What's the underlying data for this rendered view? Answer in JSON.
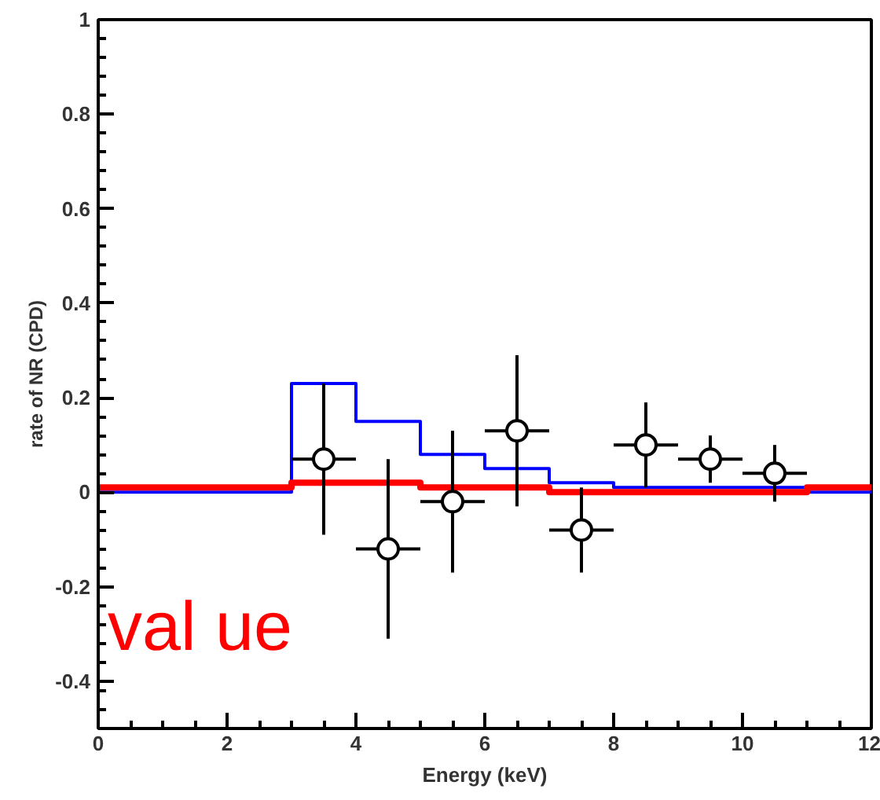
{
  "chart_data": {
    "type": "scatter",
    "xlabel": "Energy (keV)",
    "ylabel": "rate of NR (CPD)",
    "xlim": [
      0,
      12
    ],
    "ylim": [
      -0.5,
      1
    ],
    "xticks": [
      0,
      {
        "value": 0.5,
        "label": null
      },
      {
        "value": 1,
        "label": null
      },
      {
        "value": 1.5,
        "label": null
      },
      2,
      {
        "value": 2.5,
        "label": null
      },
      {
        "value": 3,
        "label": null
      },
      {
        "value": 3.5,
        "label": null
      },
      4,
      {
        "value": 4.5,
        "label": null
      },
      {
        "value": 5,
        "label": null
      },
      {
        "value": 5.5,
        "label": null
      },
      6,
      {
        "value": 6.5,
        "label": null
      },
      {
        "value": 7,
        "label": null
      },
      {
        "value": 7.5,
        "label": null
      },
      8,
      {
        "value": 8.5,
        "label": null
      },
      {
        "value": 9,
        "label": null
      },
      {
        "value": 9.5,
        "label": null
      },
      10,
      {
        "value": 10.5,
        "label": null
      },
      {
        "value": 11,
        "label": null
      },
      {
        "value": 11.5,
        "label": null
      },
      12
    ],
    "yticks": [
      {
        "value": -0.5,
        "label": null
      },
      {
        "value": -0.46,
        "label": null
      },
      {
        "value": -0.42,
        "label": null
      },
      -0.4,
      {
        "value": -0.36,
        "label": null
      },
      {
        "value": -0.32,
        "label": null
      },
      {
        "value": -0.28,
        "label": null
      },
      {
        "value": -0.24,
        "label": null
      },
      -0.2,
      {
        "value": -0.16,
        "label": null
      },
      {
        "value": -0.12,
        "label": null
      },
      {
        "value": -0.08,
        "label": null
      },
      {
        "value": -0.04,
        "label": null
      },
      0,
      {
        "value": 0.04,
        "label": null
      },
      {
        "value": 0.08,
        "label": null
      },
      {
        "value": 0.12,
        "label": null
      },
      {
        "value": 0.16,
        "label": null
      },
      0.2,
      {
        "value": 0.24,
        "label": null
      },
      {
        "value": 0.28,
        "label": null
      },
      {
        "value": 0.32,
        "label": null
      },
      {
        "value": 0.36,
        "label": null
      },
      0.4,
      {
        "value": 0.44,
        "label": null
      },
      {
        "value": 0.48,
        "label": null
      },
      {
        "value": 0.52,
        "label": null
      },
      {
        "value": 0.56,
        "label": null
      },
      0.6,
      {
        "value": 0.64,
        "label": null
      },
      {
        "value": 0.68,
        "label": null
      },
      {
        "value": 0.72,
        "label": null
      },
      {
        "value": 0.76,
        "label": null
      },
      0.8,
      {
        "value": 0.84,
        "label": null
      },
      {
        "value": 0.88,
        "label": null
      },
      {
        "value": 0.92,
        "label": null
      },
      {
        "value": 0.96,
        "label": null
      },
      1
    ],
    "grid": false,
    "series": [
      {
        "type": "step",
        "color": "#0000ff",
        "x": [
          0,
          1,
          2,
          3,
          4,
          5,
          6,
          7,
          8,
          9,
          10,
          11,
          12
        ],
        "values": [
          0,
          0,
          0,
          0.23,
          0.15,
          0.08,
          0.05,
          0.02,
          0.01,
          0.01,
          0.01,
          0,
          0
        ]
      },
      {
        "type": "step",
        "color": "#ff0000",
        "x": [
          0,
          1,
          2,
          3,
          4,
          5,
          6,
          7,
          8,
          9,
          10,
          11,
          12
        ],
        "values": [
          0.01,
          0.01,
          0.01,
          0.02,
          0.02,
          0.01,
          0.01,
          0,
          0,
          0,
          0,
          0.01,
          0.01
        ]
      },
      {
        "color": "#000000",
        "marker": "circle",
        "x": [
          3.5,
          4.5,
          5.5,
          6.5,
          7.5,
          8.5,
          9.5,
          10.5
        ],
        "values": [
          0.07,
          -0.12,
          -0.02,
          0.13,
          -0.08,
          0.1,
          0.07,
          0.04
        ],
        "errors": [
          0.16,
          0.19,
          0.15,
          0.16,
          0.09,
          0.09,
          0.05,
          0.06
        ],
        "xerrors": [
          0.5,
          0.5,
          0.5,
          0.5,
          0.5,
          0.5,
          0.5,
          0.5
        ]
      }
    ],
    "annotations": [
      "val ue"
    ]
  }
}
